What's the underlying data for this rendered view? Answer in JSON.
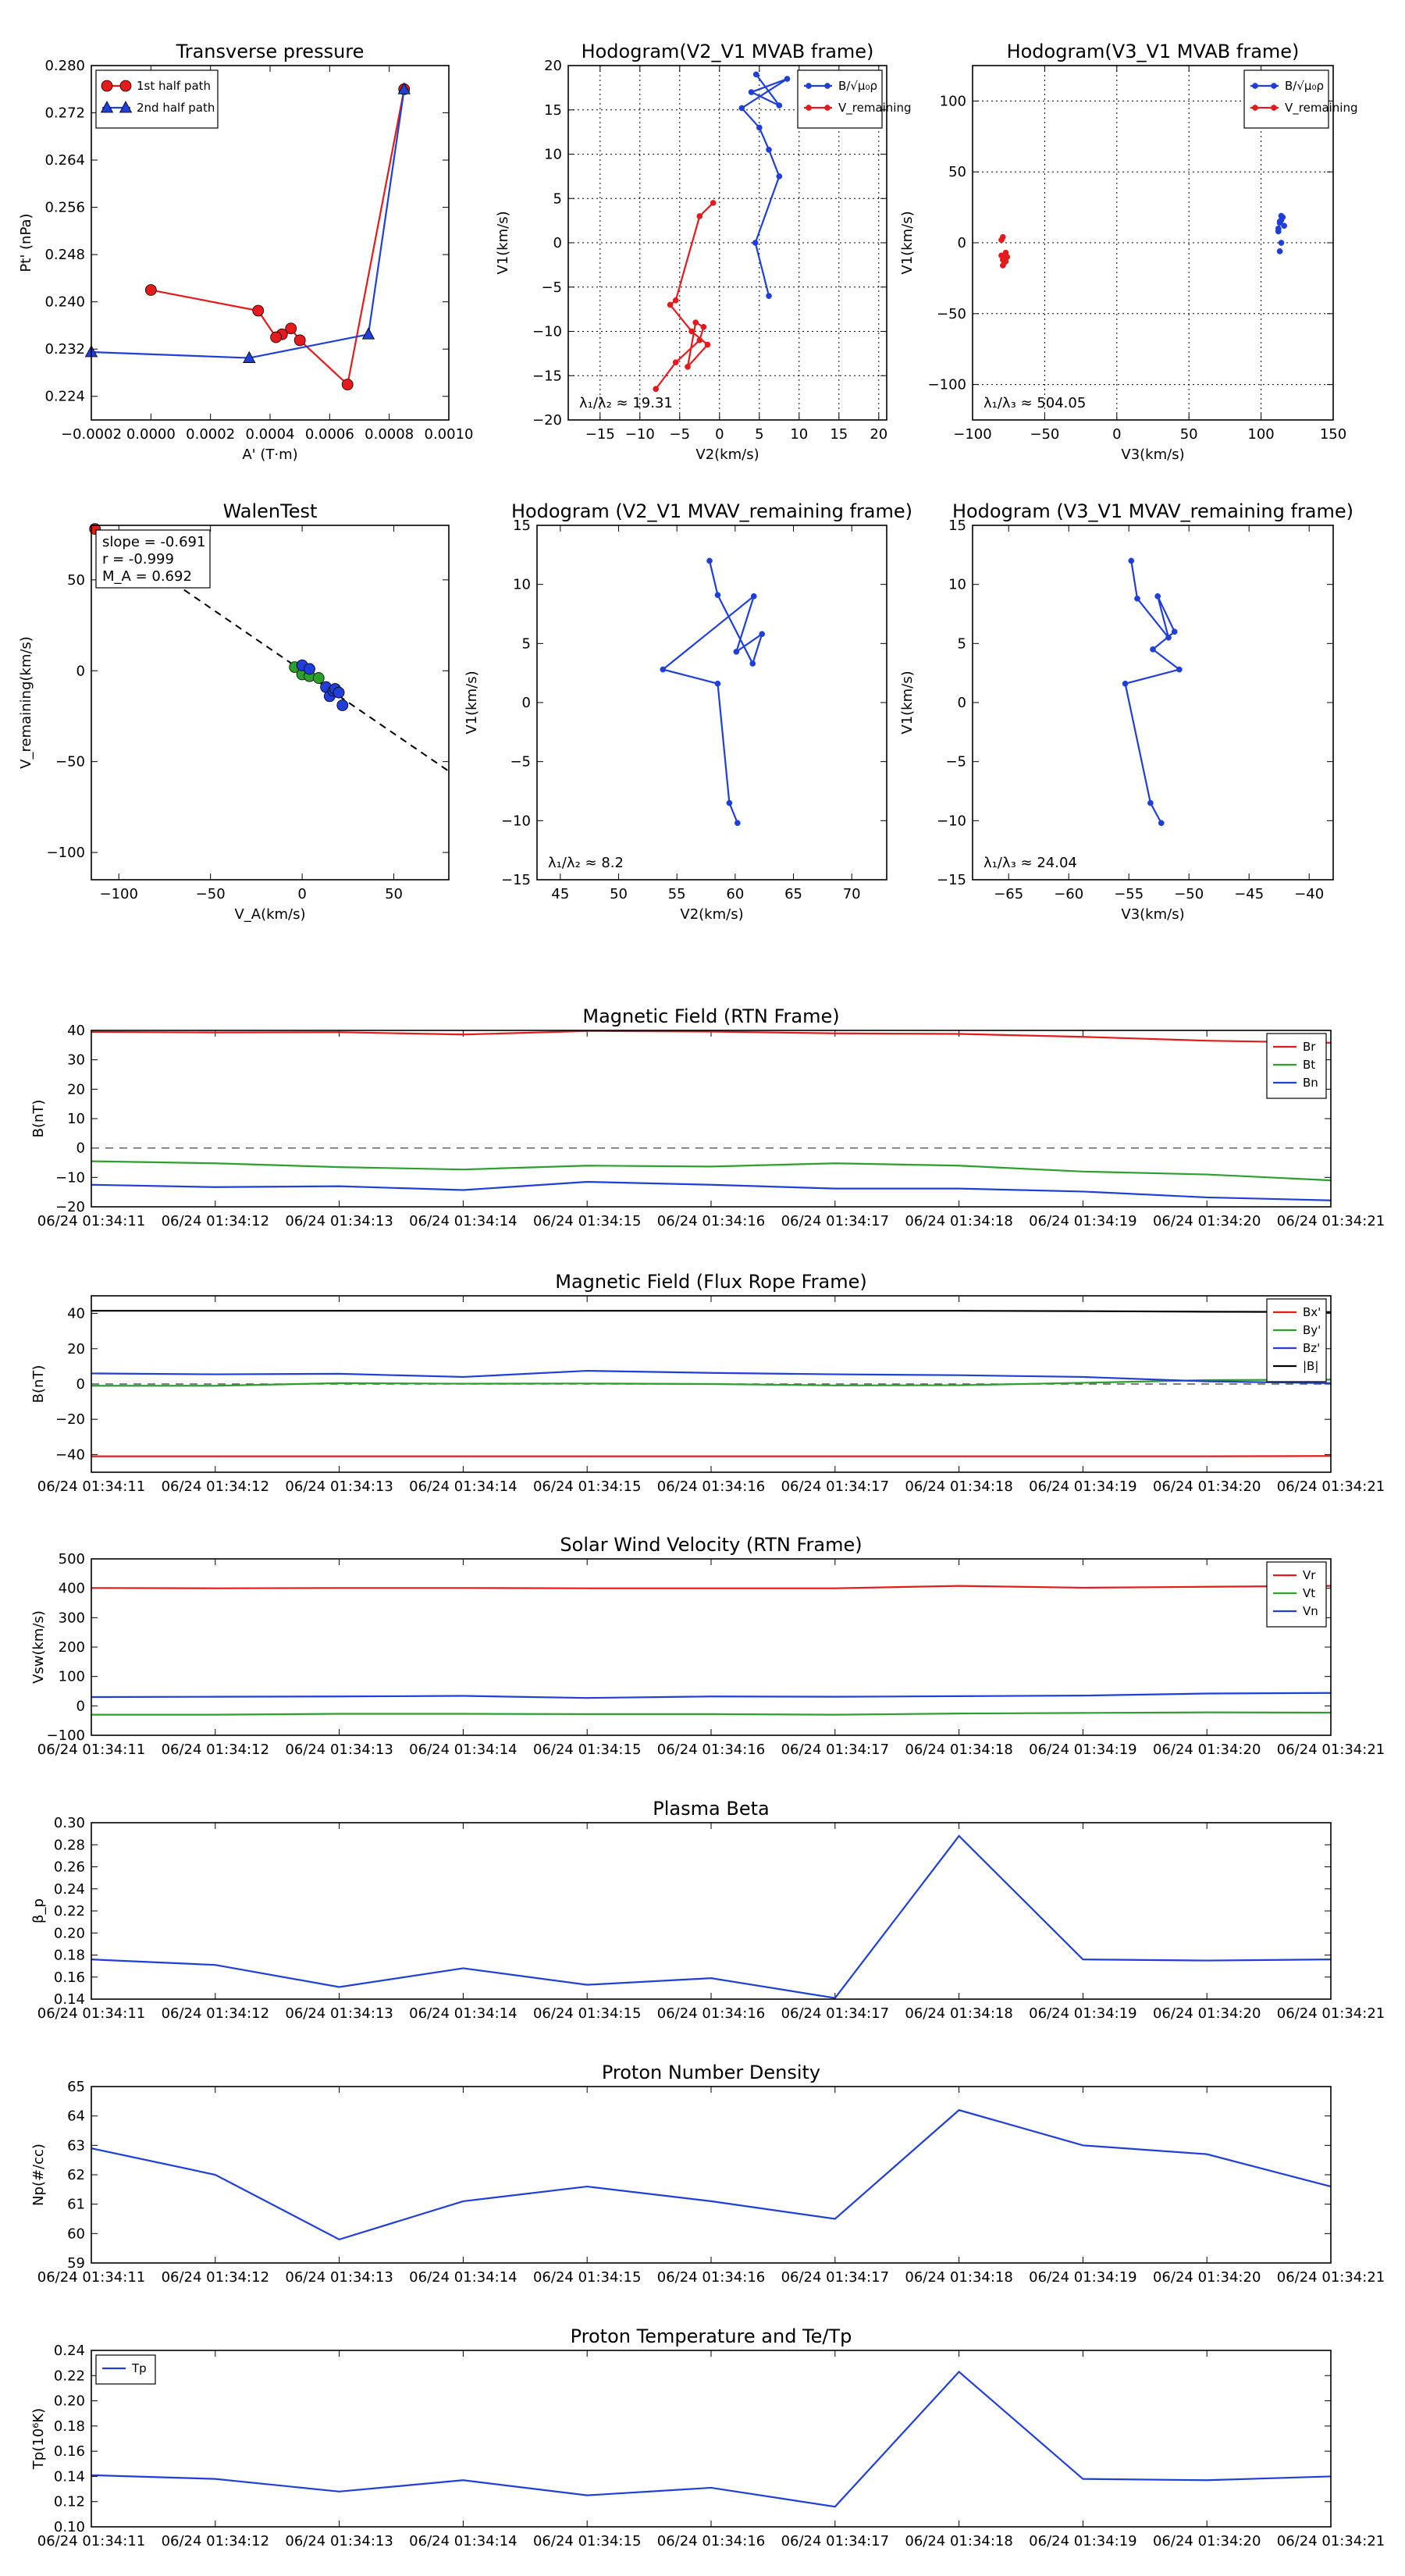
{
  "colors": {
    "red": "#e41a1c",
    "blue": "#1f3fd8",
    "green": "#2ca02c",
    "black": "#000000"
  },
  "time_ticks": [
    "06/24 01:34:11",
    "06/24 01:34:12",
    "06/24 01:34:13",
    "06/24 01:34:14",
    "06/24 01:34:15",
    "06/24 01:34:16",
    "06/24 01:34:17",
    "06/24 01:34:18",
    "06/24 01:34:19",
    "06/24 01:34:20",
    "06/24 01:34:21"
  ],
  "chart_data": [
    {
      "id": "transverse_pressure",
      "type": "line",
      "title": "Transverse pressure",
      "xlabel": "A' (T·m)",
      "ylabel": "Pt' (nPa)",
      "xlim": [
        -0.0002,
        0.001
      ],
      "ylim": [
        0.22,
        0.28
      ],
      "xticks": [
        -0.0002,
        0,
        0.0002,
        0.0004,
        0.0006,
        0.0008,
        0.001
      ],
      "xtick_labels": [
        "−0.0002",
        "0.0000",
        "0.0002",
        "0.0004",
        "0.0006",
        "0.0008",
        "0.0010"
      ],
      "yticks": [
        0.224,
        0.232,
        0.24,
        0.248,
        0.256,
        0.264,
        0.272,
        0.28
      ],
      "ytick_labels": [
        "0.224",
        "0.232",
        "0.240",
        "0.248",
        "0.256",
        "0.264",
        "0.272",
        "0.280"
      ],
      "grid": false,
      "legend": "upper-left",
      "series": [
        {
          "name": "1st half path",
          "color": "red",
          "marker": "circle",
          "x": [
            0.00085,
            0.00066,
            0.0005,
            0.00047,
            0.00044,
            0.00042,
            0.00036,
            0.0
          ],
          "y": [
            0.276,
            0.226,
            0.2335,
            0.2355,
            0.2345,
            0.234,
            0.2385,
            0.242
          ]
        },
        {
          "name": "2nd half path",
          "color": "blue",
          "marker": "triangle",
          "x": [
            0.00085,
            0.00073,
            0.00033,
            -0.0002
          ],
          "y": [
            0.276,
            0.2345,
            0.2305,
            0.2315
          ]
        }
      ]
    },
    {
      "id": "hodogram_v2_v1_mvab",
      "type": "line",
      "title": "Hodogram(V2_V1 MVAB frame)",
      "xlabel": "V2(km/s)",
      "ylabel": "V1(km/s)",
      "xlim": [
        -19,
        21
      ],
      "ylim": [
        -20,
        20
      ],
      "xticks": [
        -15,
        -10,
        -5,
        0,
        5,
        10,
        15,
        20
      ],
      "xtick_labels": [
        "−15",
        "−10",
        "−5",
        "0",
        "5",
        "10",
        "15",
        "20"
      ],
      "yticks": [
        -20,
        -15,
        -10,
        -5,
        0,
        5,
        10,
        15,
        20
      ],
      "ytick_labels": [
        "−20",
        "−15",
        "−10",
        "−5",
        "0",
        "5",
        "10",
        "15",
        "20"
      ],
      "grid": true,
      "legend": "upper-right",
      "annotation": "λ₁/λ₂ ≈ 19.31",
      "series": [
        {
          "name": "B/√μ₀ρ",
          "color": "blue",
          "marker": "dot",
          "x": [
            6.2,
            4.5,
            7.5,
            6.2,
            5.0,
            2.8,
            8.5,
            4.0,
            7.5,
            4.6
          ],
          "y": [
            -6.0,
            0.0,
            7.5,
            10.5,
            13.0,
            15.2,
            18.5,
            17.0,
            15.5,
            19.0
          ]
        },
        {
          "name": "V_remaining",
          "color": "red",
          "marker": "dot",
          "x": [
            -0.8,
            -2.5,
            -5.5,
            -6.2,
            -3.5,
            -1.5,
            -4.0,
            -3.0,
            -2.0,
            -2.5,
            -5.5,
            -8.0
          ],
          "y": [
            4.5,
            3.0,
            -6.5,
            -7.0,
            -10.0,
            -11.5,
            -14.0,
            -9.0,
            -9.5,
            -11.0,
            -13.5,
            -16.5
          ]
        }
      ]
    },
    {
      "id": "hodogram_v3_v1_mvab",
      "type": "scatter",
      "title": "Hodogram(V3_V1 MVAB frame)",
      "xlabel": "V3(km/s)",
      "ylabel": "V1(km/s)",
      "xlim": [
        -100,
        150
      ],
      "ylim": [
        -125,
        125
      ],
      "xticks": [
        -100,
        -50,
        0,
        50,
        100,
        150
      ],
      "xtick_labels": [
        "−100",
        "−50",
        "0",
        "50",
        "100",
        "150"
      ],
      "yticks": [
        -100,
        -50,
        0,
        50,
        100
      ],
      "ytick_labels": [
        "−100",
        "−50",
        "0",
        "50",
        "100"
      ],
      "grid": true,
      "legend": "upper-right",
      "annotation": "λ₁/λ₃ ≈ 504.05",
      "series": [
        {
          "name": "B/√μ₀ρ",
          "color": "blue",
          "marker": "dot",
          "x": [
            113,
            114,
            112,
            116,
            113,
            115,
            114,
            112,
            113,
            114
          ],
          "y": [
            -6,
            0,
            8,
            12,
            15,
            18,
            19,
            10,
            14,
            16
          ]
        },
        {
          "name": "V_remaining",
          "color": "red",
          "marker": "dot",
          "x": [
            -79,
            -80,
            -77,
            -78,
            -76,
            -79,
            -78,
            -80,
            -79,
            -78,
            -77,
            -79
          ],
          "y": [
            4,
            2,
            -7,
            -9,
            -10,
            -12,
            -14,
            -9,
            -10,
            -11,
            -13,
            -16
          ]
        }
      ]
    },
    {
      "id": "walen_test",
      "type": "scatter",
      "title": "WalenTest",
      "xlabel": "V_A(km/s)",
      "ylabel": "V_remaining(km/s)",
      "xlim": [
        -115,
        80
      ],
      "ylim": [
        -115,
        80
      ],
      "xticks": [
        -100,
        -50,
        0,
        50
      ],
      "xtick_labels": [
        "−100",
        "−50",
        "0",
        "50"
      ],
      "yticks": [
        -100,
        -50,
        0,
        50
      ],
      "ytick_labels": [
        "−100",
        "−50",
        "0",
        "50"
      ],
      "grid": false,
      "annotations": [
        "slope = -0.691",
        "r = -0.999",
        "M_A = 0.692"
      ],
      "fit_line": {
        "slope": -0.691,
        "intercept": 0
      },
      "series": [
        {
          "name": "red",
          "color": "red",
          "marker": "circle",
          "x": [
            -113
          ],
          "y": [
            78
          ]
        },
        {
          "name": "green",
          "color": "green",
          "marker": "circle",
          "x": [
            -4,
            0,
            4,
            9
          ],
          "y": [
            2,
            -2,
            -3,
            -4
          ]
        },
        {
          "name": "blue",
          "color": "blue",
          "marker": "circle",
          "x": [
            0,
            4,
            13,
            15,
            17,
            18,
            20,
            22
          ],
          "y": [
            3,
            1,
            -9,
            -14,
            -11,
            -10,
            -12,
            -19
          ]
        }
      ]
    },
    {
      "id": "hodogram_v2_v1_mvav",
      "type": "line",
      "title": "Hodogram (V2_V1 MVAV_remaining frame)",
      "xlabel": "V2(km/s)",
      "ylabel": "V1(km/s)",
      "xlim": [
        43,
        73
      ],
      "ylim": [
        -15,
        15
      ],
      "xticks": [
        45,
        50,
        55,
        60,
        65,
        70
      ],
      "xtick_labels": [
        "45",
        "50",
        "55",
        "60",
        "65",
        "70"
      ],
      "yticks": [
        -15,
        -10,
        -5,
        0,
        5,
        10,
        15
      ],
      "ytick_labels": [
        "−15",
        "−10",
        "−5",
        "0",
        "5",
        "10",
        "15"
      ],
      "grid": false,
      "annotation": "λ₁/λ₂ ≈ 8.2",
      "series": [
        {
          "name": "V",
          "color": "blue",
          "marker": "dot",
          "x": [
            60.2,
            59.5,
            58.5,
            53.8,
            61.6,
            60.1,
            62.3,
            61.5,
            58.5,
            57.8
          ],
          "y": [
            -10.2,
            -8.5,
            1.6,
            2.8,
            9.0,
            4.3,
            5.8,
            3.3,
            9.1,
            12.0
          ]
        }
      ]
    },
    {
      "id": "hodogram_v3_v1_mvav",
      "type": "line",
      "title": "Hodogram (V3_V1 MVAV_remaining frame)",
      "xlabel": "V3(km/s)",
      "ylabel": "V1(km/s)",
      "xlim": [
        -68,
        -38
      ],
      "ylim": [
        -15,
        15
      ],
      "xticks": [
        -65,
        -60,
        -55,
        -50,
        -45,
        -40
      ],
      "xtick_labels": [
        "−65",
        "−60",
        "−55",
        "−50",
        "−45",
        "−40"
      ],
      "yticks": [
        -15,
        -10,
        -5,
        0,
        5,
        10,
        15
      ],
      "ytick_labels": [
        "−15",
        "−10",
        "−5",
        "0",
        "5",
        "10",
        "15"
      ],
      "grid": false,
      "annotation": "λ₁/λ₃ ≈ 24.04",
      "series": [
        {
          "name": "V",
          "color": "blue",
          "marker": "dot",
          "x": [
            -52.3,
            -53.2,
            -55.3,
            -50.8,
            -53.0,
            -51.2,
            -52.6,
            -51.7,
            -54.3,
            -54.8
          ],
          "y": [
            -10.2,
            -8.5,
            1.6,
            2.8,
            4.5,
            6.0,
            9.0,
            5.5,
            8.8,
            12.0
          ]
        }
      ]
    },
    {
      "id": "mag_rtn",
      "type": "line",
      "title": "Magnetic Field (RTN Frame)",
      "ylabel": "B(nT)",
      "ylim": [
        -20,
        40
      ],
      "yticks": [
        -20,
        -10,
        0,
        10,
        20,
        30,
        40
      ],
      "ytick_labels": [
        "−20",
        "−10",
        "0",
        "10",
        "20",
        "30",
        "40"
      ],
      "zero_line": true,
      "legend": "right",
      "x": [
        0,
        1,
        2,
        3,
        4,
        5,
        6,
        7,
        8,
        9,
        10
      ],
      "series": [
        {
          "name": "Br",
          "color": "red",
          "values": [
            39.5,
            39.3,
            39.4,
            38.6,
            39.8,
            39.6,
            39.0,
            38.8,
            37.8,
            36.5,
            35.8
          ]
        },
        {
          "name": "Bt",
          "color": "green",
          "values": [
            -4.5,
            -5.2,
            -6.5,
            -7.3,
            -6.0,
            -6.3,
            -5.2,
            -6.0,
            -8.0,
            -9.0,
            -11.0
          ]
        },
        {
          "name": "Bn",
          "color": "blue",
          "values": [
            -12.5,
            -13.3,
            -13.0,
            -14.3,
            -11.5,
            -12.5,
            -13.8,
            -13.8,
            -14.8,
            -16.8,
            -17.8
          ]
        }
      ]
    },
    {
      "id": "mag_fr",
      "type": "line",
      "title": "Magnetic Field (Flux Rope Frame)",
      "ylabel": "B(nT)",
      "ylim": [
        -50,
        50
      ],
      "yticks": [
        -40,
        -20,
        0,
        20,
        40
      ],
      "ytick_labels": [
        "−40",
        "−20",
        "0",
        "20",
        "40"
      ],
      "zero_line": true,
      "legend": "right",
      "x": [
        0,
        1,
        2,
        3,
        4,
        5,
        6,
        7,
        8,
        9,
        10
      ],
      "series": [
        {
          "name": "Bx'",
          "color": "red",
          "values": [
            -41.0,
            -41.0,
            -41.0,
            -41.0,
            -41.0,
            -41.0,
            -41.0,
            -41.0,
            -41.0,
            -41.0,
            -40.8
          ]
        },
        {
          "name": "By'",
          "color": "green",
          "values": [
            -1.0,
            -1.0,
            0.5,
            0.2,
            0.3,
            0.0,
            -0.8,
            -0.7,
            0.7,
            2.2,
            2.5
          ]
        },
        {
          "name": "Bz'",
          "color": "blue",
          "values": [
            6.0,
            5.5,
            5.8,
            4.0,
            7.5,
            6.3,
            5.5,
            5.0,
            4.0,
            1.5,
            0.5
          ]
        },
        {
          "name": "|B|",
          "color": "black",
          "values": [
            41.5,
            41.5,
            41.5,
            41.5,
            41.5,
            41.5,
            41.5,
            41.5,
            41.3,
            41.0,
            40.8
          ]
        }
      ]
    },
    {
      "id": "vsw_rtn",
      "type": "line",
      "title": "Solar Wind Velocity (RTN Frame)",
      "ylabel": "Vsw(km/s)",
      "ylim": [
        -100,
        500
      ],
      "yticks": [
        -100,
        0,
        100,
        200,
        300,
        400,
        500
      ],
      "ytick_labels": [
        "−100",
        "0",
        "100",
        "200",
        "300",
        "400",
        "500"
      ],
      "legend": "right",
      "x": [
        0,
        1,
        2,
        3,
        4,
        5,
        6,
        7,
        8,
        9,
        10
      ],
      "series": [
        {
          "name": "Vr",
          "color": "red",
          "values": [
            401,
            400,
            401,
            401,
            400,
            400,
            400,
            408,
            402,
            405,
            408
          ]
        },
        {
          "name": "Vt",
          "color": "green",
          "values": [
            -30,
            -30,
            -27,
            -27,
            -28,
            -28,
            -30,
            -26,
            -24,
            -22,
            -23
          ]
        },
        {
          "name": "Vn",
          "color": "blue",
          "values": [
            30,
            31,
            32,
            34,
            27,
            32,
            31,
            33,
            35,
            42,
            44
          ]
        }
      ]
    },
    {
      "id": "plasma_beta",
      "type": "line",
      "title": "Plasma Beta",
      "ylabel": "β_p",
      "ylim": [
        0.14,
        0.3
      ],
      "yticks": [
        0.14,
        0.16,
        0.18,
        0.2,
        0.22,
        0.24,
        0.26,
        0.28,
        0.3
      ],
      "ytick_labels": [
        "0.14",
        "0.16",
        "0.18",
        "0.20",
        "0.22",
        "0.24",
        "0.26",
        "0.28",
        "0.30"
      ],
      "x": [
        0,
        1,
        2,
        3,
        4,
        5,
        6,
        7,
        8,
        9,
        10
      ],
      "series": [
        {
          "name": "beta",
          "color": "blue",
          "values": [
            0.176,
            0.171,
            0.151,
            0.168,
            0.153,
            0.159,
            0.141,
            0.288,
            0.176,
            0.175,
            0.176
          ]
        }
      ]
    },
    {
      "id": "proton_density",
      "type": "line",
      "title": "Proton Number Density",
      "ylabel": "Np(#/cc)",
      "ylim": [
        59,
        65
      ],
      "yticks": [
        59,
        60,
        61,
        62,
        63,
        64,
        65
      ],
      "ytick_labels": [
        "59",
        "60",
        "61",
        "62",
        "63",
        "64",
        "65"
      ],
      "x": [
        0,
        1,
        2,
        3,
        4,
        5,
        6,
        7,
        8,
        9,
        10
      ],
      "series": [
        {
          "name": "Np",
          "color": "blue",
          "values": [
            62.9,
            62.0,
            59.8,
            61.1,
            61.6,
            61.1,
            60.5,
            64.2,
            63.0,
            62.7,
            61.6
          ]
        }
      ]
    },
    {
      "id": "proton_temp",
      "type": "line",
      "title": "Proton Temperature and Te/Tp",
      "ylabel": "Tp(10⁶K)",
      "ylim": [
        0.1,
        0.24
      ],
      "yticks": [
        0.1,
        0.12,
        0.14,
        0.16,
        0.18,
        0.2,
        0.22,
        0.24
      ],
      "ytick_labels": [
        "0.10",
        "0.12",
        "0.14",
        "0.16",
        "0.18",
        "0.20",
        "0.22",
        "0.24"
      ],
      "legend": "upper-left",
      "x": [
        0,
        1,
        2,
        3,
        4,
        5,
        6,
        7,
        8,
        9,
        10
      ],
      "series": [
        {
          "name": "Tp",
          "color": "blue",
          "values": [
            0.141,
            0.138,
            0.128,
            0.137,
            0.125,
            0.131,
            0.116,
            0.223,
            0.138,
            0.137,
            0.14
          ]
        }
      ]
    }
  ]
}
